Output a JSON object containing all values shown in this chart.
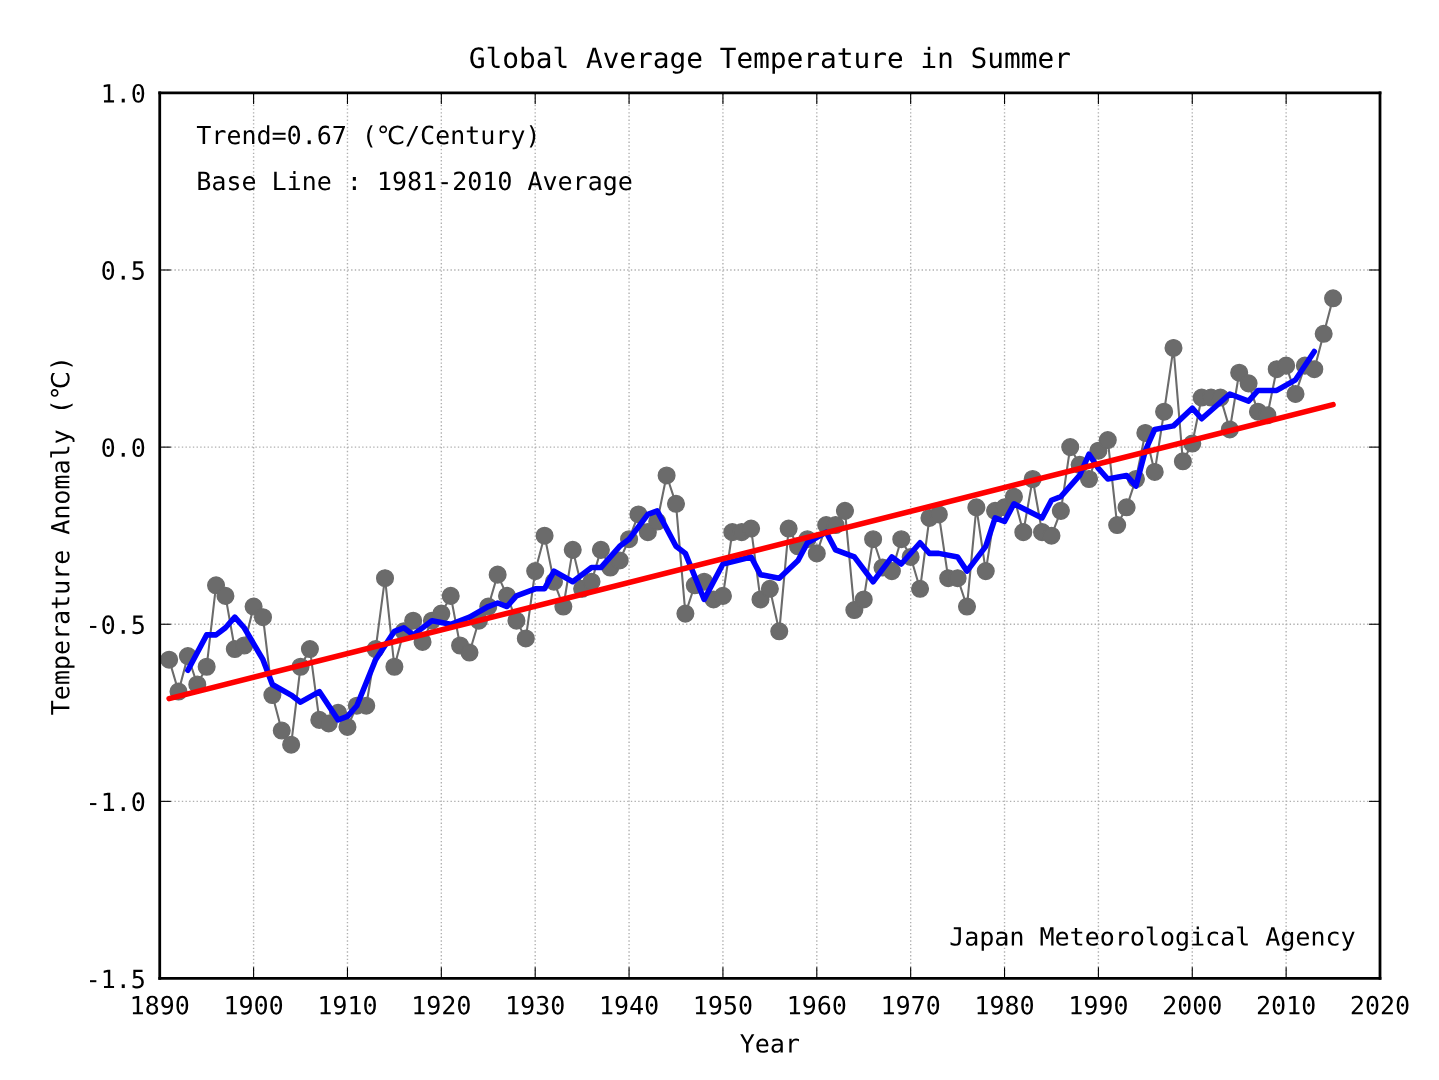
{
  "chart_data": {
    "type": "line",
    "title": "Global Average Temperature in Summer",
    "xlabel": "Year",
    "ylabel": "Temperature Anomaly (℃)",
    "annotations": [
      "Trend=0.67 (℃/Century)",
      "Base Line : 1981-2010 Average",
      "Japan Meteorological Agency"
    ],
    "xlim": [
      1890,
      2020
    ],
    "xticks": [
      1890,
      1900,
      1910,
      1920,
      1930,
      1940,
      1950,
      1960,
      1970,
      1980,
      1990,
      2000,
      2010,
      2020
    ],
    "ylim": [
      -1.5,
      1.0
    ],
    "yticks": [
      {
        "value": -1.5,
        "label": "-1.5"
      },
      {
        "value": -1.0,
        "label": "-1.0"
      },
      {
        "value": -0.5,
        "label": "-0.5"
      },
      {
        "value": 0,
        "label": "0.0"
      },
      {
        "value": 0.5,
        "label": "0.5"
      },
      {
        "value": 1.0,
        "label": "1.0"
      }
    ],
    "grid": true,
    "legend": false,
    "series": [
      {
        "marker": "circle",
        "color": "#6b6b6b",
        "x": [
          1891,
          1892,
          1893,
          1894,
          1895,
          1896,
          1897,
          1898,
          1899,
          1900,
          1901,
          1902,
          1903,
          1904,
          1905,
          1906,
          1907,
          1908,
          1909,
          1910,
          1911,
          1912,
          1913,
          1914,
          1915,
          1916,
          1917,
          1918,
          1919,
          1920,
          1921,
          1922,
          1923,
          1924,
          1925,
          1926,
          1927,
          1928,
          1929,
          1930,
          1931,
          1932,
          1933,
          1934,
          1935,
          1936,
          1937,
          1938,
          1939,
          1940,
          1941,
          1942,
          1943,
          1944,
          1945,
          1946,
          1947,
          1948,
          1949,
          1950,
          1951,
          1952,
          1953,
          1954,
          1955,
          1956,
          1957,
          1958,
          1959,
          1960,
          1961,
          1962,
          1963,
          1964,
          1965,
          1966,
          1967,
          1968,
          1969,
          1970,
          1971,
          1972,
          1973,
          1974,
          1975,
          1976,
          1977,
          1978,
          1979,
          1980,
          1981,
          1982,
          1983,
          1984,
          1985,
          1986,
          1987,
          1988,
          1989,
          1990,
          1991,
          1992,
          1993,
          1994,
          1995,
          1996,
          1997,
          1998,
          1999,
          2000,
          2001,
          2002,
          2003,
          2004,
          2005,
          2006,
          2007,
          2008,
          2009,
          2010,
          2011,
          2012,
          2013,
          2014,
          2015
        ],
        "values": [
          -0.6,
          -0.69,
          -0.59,
          -0.67,
          -0.62,
          -0.39,
          -0.42,
          -0.57,
          -0.56,
          -0.45,
          -0.48,
          -0.7,
          -0.8,
          -0.84,
          -0.62,
          -0.57,
          -0.77,
          -0.78,
          -0.75,
          -0.79,
          -0.73,
          -0.73,
          -0.57,
          -0.37,
          -0.62,
          -0.52,
          -0.49,
          -0.55,
          -0.49,
          -0.47,
          -0.42,
          -0.56,
          -0.58,
          -0.49,
          -0.45,
          -0.36,
          -0.42,
          -0.49,
          -0.54,
          -0.35,
          -0.25,
          -0.38,
          -0.45,
          -0.29,
          -0.4,
          -0.38,
          -0.29,
          -0.34,
          -0.32,
          -0.26,
          -0.19,
          -0.24,
          -0.21,
          -0.08,
          -0.16,
          -0.47,
          -0.39,
          -0.38,
          -0.43,
          -0.42,
          -0.24,
          -0.24,
          -0.23,
          -0.43,
          -0.4,
          -0.52,
          -0.23,
          -0.28,
          -0.26,
          -0.3,
          -0.22,
          -0.22,
          -0.18,
          -0.46,
          -0.43,
          -0.26,
          -0.34,
          -0.35,
          -0.26,
          -0.31,
          -0.4,
          -0.2,
          -0.19,
          -0.37,
          -0.37,
          -0.45,
          -0.17,
          -0.35,
          -0.18,
          -0.17,
          -0.14,
          -0.24,
          -0.09,
          -0.24,
          -0.25,
          -0.18,
          0.0,
          -0.05,
          -0.09,
          -0.01,
          0.02,
          -0.22,
          -0.17,
          -0.09,
          0.04,
          -0.07,
          0.1,
          0.28,
          -0.04,
          0.01,
          0.14,
          0.14,
          0.14,
          0.05,
          0.21,
          0.18,
          0.1,
          0.09,
          0.22,
          0.23,
          0.15,
          0.23,
          0.22,
          0.32,
          0.42
        ]
      },
      {
        "color": "#0000ff",
        "x": [
          1893,
          1895,
          1896,
          1897,
          1898,
          1899,
          1901,
          1902,
          1904,
          1905,
          1907,
          1909,
          1910,
          1911,
          1913,
          1915,
          1916,
          1917,
          1919,
          1921,
          1923,
          1925,
          1926,
          1927,
          1928,
          1930,
          1931,
          1932,
          1934,
          1936,
          1937,
          1939,
          1940,
          1942,
          1943,
          1945,
          1946,
          1948,
          1950,
          1953,
          1954,
          1956,
          1958,
          1959,
          1961,
          1962,
          1964,
          1966,
          1968,
          1969,
          1971,
          1972,
          1973,
          1975,
          1976,
          1978,
          1979,
          1980,
          1981,
          1984,
          1985,
          1986,
          1988,
          1989,
          1990,
          1991,
          1993,
          1994,
          1995,
          1996,
          1998,
          2000,
          2001,
          2004,
          2006,
          2007,
          2009,
          2011,
          2013
        ],
        "values": [
          -0.63,
          -0.53,
          -0.53,
          -0.51,
          -0.48,
          -0.51,
          -0.6,
          -0.67,
          -0.7,
          -0.72,
          -0.69,
          -0.77,
          -0.76,
          -0.73,
          -0.6,
          -0.52,
          -0.51,
          -0.53,
          -0.49,
          -0.5,
          -0.48,
          -0.45,
          -0.44,
          -0.45,
          -0.42,
          -0.4,
          -0.4,
          -0.35,
          -0.38,
          -0.34,
          -0.34,
          -0.28,
          -0.26,
          -0.19,
          -0.18,
          -0.28,
          -0.3,
          -0.43,
          -0.33,
          -0.31,
          -0.36,
          -0.37,
          -0.32,
          -0.27,
          -0.24,
          -0.29,
          -0.31,
          -0.38,
          -0.31,
          -0.33,
          -0.27,
          -0.3,
          -0.3,
          -0.31,
          -0.35,
          -0.28,
          -0.2,
          -0.21,
          -0.16,
          -0.2,
          -0.15,
          -0.14,
          -0.08,
          -0.02,
          -0.06,
          -0.09,
          -0.08,
          -0.11,
          -0.01,
          0.05,
          0.06,
          0.11,
          0.08,
          0.15,
          0.13,
          0.16,
          0.16,
          0.19,
          0.27
        ]
      },
      {
        "color": "#ff0000",
        "x": [
          1891,
          2015
        ],
        "values": [
          -0.71,
          0.12
        ]
      }
    ]
  }
}
